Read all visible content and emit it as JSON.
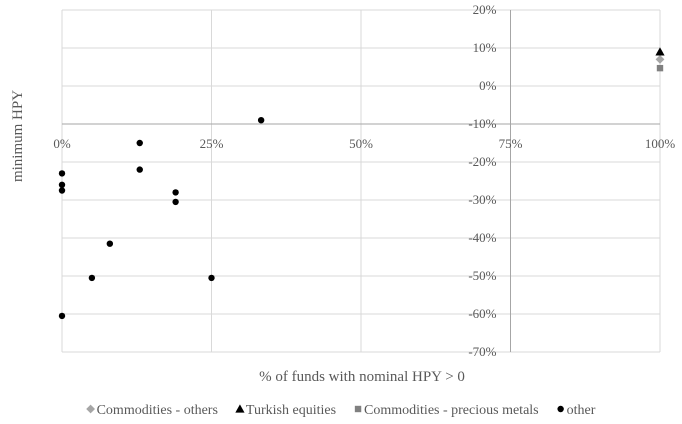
{
  "chart_data": {
    "type": "scatter",
    "xlabel": "% of funds with nominal HPY > 0",
    "ylabel": "minimum HPY",
    "xlim": [
      0,
      1
    ],
    "ylim": [
      -0.7,
      0.2
    ],
    "x_ticks": [
      "0%",
      "25%",
      "50%",
      "75%",
      "100%"
    ],
    "y_ticks": [
      "20%",
      "10%",
      "0%",
      "-10%",
      "-20%",
      "-30%",
      "-40%",
      "-50%",
      "-60%",
      "-70%"
    ],
    "grid": true,
    "legend_position": "bottom",
    "series": [
      {
        "name": "Commodities - others",
        "marker": "diamond",
        "color": "#a6a6a6",
        "points": [
          [
            1.0,
            0.07
          ]
        ]
      },
      {
        "name": "Turkish equities",
        "marker": "triangle",
        "color": "#000000",
        "points": [
          [
            1.0,
            0.09
          ]
        ]
      },
      {
        "name": "Commodities - precious metals",
        "marker": "square",
        "color": "#808080",
        "points": [
          [
            1.0,
            0.047
          ]
        ]
      },
      {
        "name": "other",
        "marker": "circle",
        "color": "#000000",
        "points": [
          [
            0.333,
            -0.09
          ],
          [
            0.13,
            -0.15
          ],
          [
            0.13,
            -0.22
          ],
          [
            0.0,
            -0.23
          ],
          [
            0.0,
            -0.26
          ],
          [
            0.0,
            -0.275
          ],
          [
            0.19,
            -0.28
          ],
          [
            0.19,
            -0.305
          ],
          [
            0.08,
            -0.415
          ],
          [
            0.05,
            -0.505
          ],
          [
            0.25,
            -0.505
          ],
          [
            0.0,
            -0.605
          ]
        ]
      }
    ]
  }
}
